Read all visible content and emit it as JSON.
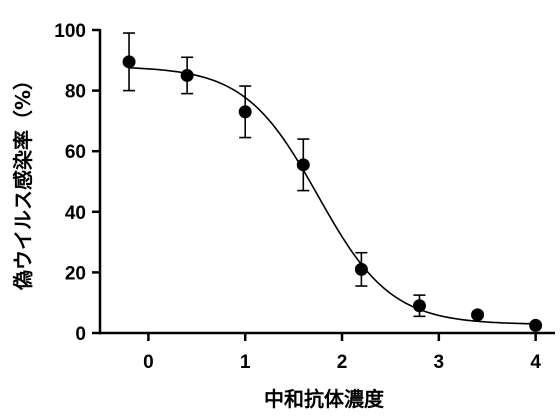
{
  "chart_data": {
    "type": "scatter",
    "title": "",
    "xlabel": "中和抗体濃度",
    "ylabel": "偽ウイルス感染率（%）",
    "xlim": [
      -0.5,
      4.2
    ],
    "ylim": [
      0,
      100
    ],
    "x_ticks": [
      0,
      1,
      2,
      3,
      4
    ],
    "y_ticks": [
      0,
      20,
      40,
      60,
      80,
      100
    ],
    "grid": false,
    "legend": "none",
    "series": [
      {
        "x": [
          -0.2,
          0.4,
          1.0,
          1.6,
          2.2,
          2.8,
          3.4,
          4.0
        ],
        "y": [
          89.5,
          85,
          73,
          55.5,
          21,
          9,
          6,
          2.5
        ],
        "error": [
          9.5,
          6,
          8.5,
          8.5,
          5.5,
          3.5,
          0,
          0
        ]
      }
    ],
    "fit_curve": {
      "model": "four-parameter logistic",
      "top": 88,
      "bottom": 2.8,
      "ec50_x": 1.75,
      "hill_slope": -1.15
    },
    "colors": {
      "marker": "#000000",
      "line": "#000000"
    }
  }
}
